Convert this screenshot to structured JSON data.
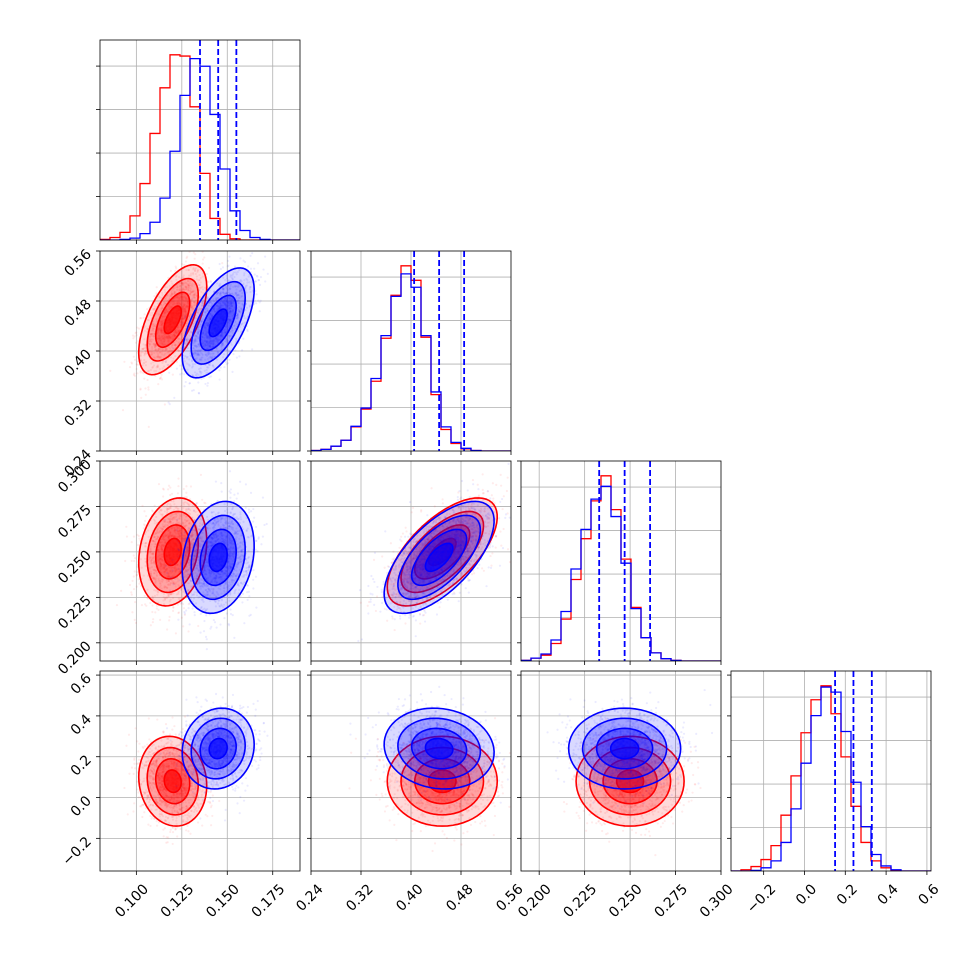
{
  "chart_data": {
    "type": "corner",
    "grid": true,
    "parameters": [
      {
        "range": [
          0.08,
          0.19
        ],
        "ticks": [
          0.1,
          0.125,
          0.15,
          0.175
        ],
        "tick_labels": [
          "0.100",
          "0.125",
          "0.150",
          "0.175"
        ]
      },
      {
        "range": [
          0.24,
          0.56
        ],
        "ticks": [
          0.24,
          0.32,
          0.4,
          0.48,
          0.56
        ],
        "tick_labels": [
          "0.24",
          "0.32",
          "0.40",
          "0.48",
          "0.56"
        ]
      },
      {
        "range": [
          0.19,
          0.3
        ],
        "ticks": [
          0.2,
          0.225,
          0.25,
          0.275,
          0.3
        ],
        "tick_labels": [
          "0.200",
          "0.225",
          "0.250",
          "0.275",
          "0.300"
        ]
      },
      {
        "range": [
          -0.36,
          0.62
        ],
        "ticks": [
          -0.2,
          0.0,
          0.2,
          0.4,
          0.6
        ],
        "tick_labels": [
          "−0.2",
          "0.0",
          "0.2",
          "0.4",
          "0.6"
        ]
      }
    ],
    "series": [
      {
        "color": "#ff0000",
        "means": [
          0.12,
          0.45,
          0.25,
          0.08
        ],
        "sds": [
          0.0085,
          0.04,
          0.0135,
          0.1
        ],
        "correlations": [
          [
            0,
            1,
            0.6
          ],
          [
            0,
            2,
            0.2
          ],
          [
            0,
            3,
            -0.1
          ],
          [
            1,
            2,
            0.65
          ],
          [
            1,
            3,
            0.0
          ],
          [
            2,
            3,
            0.0
          ]
        ],
        "histograms": [
          {
            "edges_range": [
              0.08,
              0.19
            ],
            "counts": [
              1,
              4,
              12,
              38,
              89,
              168,
              240,
              292,
              290,
              210,
              105,
              34,
              9,
              2,
              0,
              0,
              0,
              0,
              0,
              0
            ]
          },
          {
            "edges_range": [
              0.24,
              0.56
            ],
            "counts": [
              1,
              3,
              9,
              20,
              45,
              78,
              130,
              210,
              290,
              345,
              318,
              212,
              105,
              40,
              14,
              4,
              1,
              0,
              0,
              0
            ]
          },
          {
            "edges_range": [
              0.19,
              0.3
            ],
            "counts": [
              1,
              5,
              10,
              30,
              72,
              140,
              210,
              275,
              318,
              260,
              175,
              92,
              40,
              14,
              4,
              1,
              0,
              0,
              0,
              0
            ]
          },
          {
            "edges_range": [
              -0.36,
              0.62
            ],
            "counts": [
              0,
              2,
              7,
              18,
              40,
              88,
              150,
              218,
              270,
              292,
              248,
              180,
              102,
              45,
              16,
              5,
              1,
              0,
              0,
              0
            ]
          }
        ]
      },
      {
        "color": "#0000ff",
        "means": [
          0.145,
          0.445,
          0.247,
          0.24
        ],
        "sds": [
          0.009,
          0.04,
          0.014,
          0.09
        ],
        "correlations": [
          [
            0,
            1,
            0.6
          ],
          [
            0,
            2,
            0.2
          ],
          [
            0,
            3,
            0.1
          ],
          [
            1,
            2,
            0.65
          ],
          [
            1,
            3,
            -0.1
          ],
          [
            2,
            3,
            0.0
          ]
        ],
        "histograms": [
          {
            "edges_range": [
              0.08,
              0.19
            ],
            "counts": [
              0,
              0,
              1,
              3,
              10,
              28,
              66,
              140,
              228,
              286,
              274,
              198,
              112,
              46,
              15,
              4,
              1,
              0,
              0,
              0
            ]
          },
          {
            "edges_range": [
              0.24,
              0.56
            ],
            "counts": [
              1,
              3,
              9,
              20,
              46,
              80,
              135,
              215,
              288,
              330,
              305,
              215,
              110,
              45,
              16,
              5,
              1,
              0,
              0,
              0
            ]
          },
          {
            "edges_range": [
              0.19,
              0.3
            ],
            "counts": [
              1,
              5,
              12,
              36,
              85,
              158,
              226,
              278,
              300,
              248,
              168,
              90,
              40,
              14,
              4,
              1,
              0,
              0,
              0,
              0
            ]
          },
          {
            "edges_range": [
              -0.36,
              0.62
            ],
            "counts": [
              0,
              0,
              1,
              5,
              16,
              45,
              98,
              170,
              245,
              290,
              282,
              220,
              140,
              70,
              26,
              8,
              2,
              0,
              0,
              0
            ]
          }
        ]
      }
    ],
    "quantile_lines": {
      "color": "#0000ff",
      "style": "dashed",
      "values": [
        [
          0.135,
          0.145,
          0.155
        ],
        [
          0.405,
          0.445,
          0.485
        ],
        [
          0.233,
          0.247,
          0.261
        ],
        [
          0.15,
          0.24,
          0.33
        ]
      ]
    }
  }
}
